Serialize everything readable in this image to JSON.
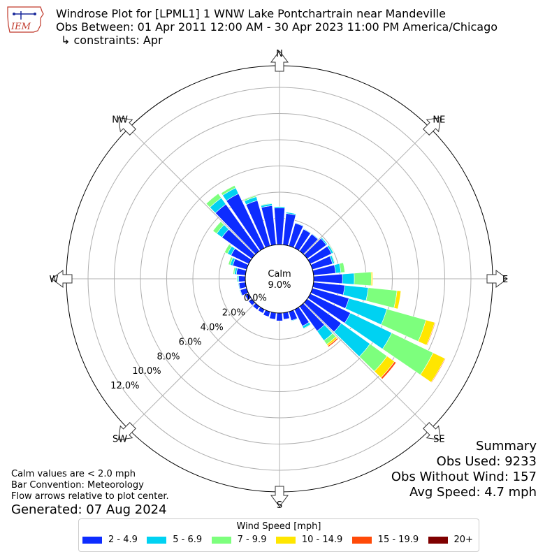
{
  "header": {
    "logo_text": "IEM",
    "title_line1": "Windrose Plot for [LPML1] 1 WNW Lake Pontchartrain near Mandeville",
    "title_line2": "Obs Between: 01 Apr 2011 12:00 AM - 30 Apr 2023 11:00 PM America/Chicago",
    "title_line3": "↳ constraints: Apr"
  },
  "calm": {
    "label": "Calm",
    "value": "9.0%"
  },
  "summary": {
    "title": "Summary",
    "obs_used": "Obs Used: 9233",
    "obs_without_wind": "Obs Without Wind: 157",
    "avg_speed": "Avg Speed: 4.7 mph"
  },
  "notes": {
    "line1": "Calm values are < 2.0 mph",
    "line2": "Bar Convention: Meteorology",
    "line3": "Flow arrows relative to plot center."
  },
  "generated": "Generated: 07 Aug 2024",
  "legend": {
    "title": "Wind Speed [mph]",
    "items": [
      {
        "label": "2 - 4.9",
        "color": "#0d2cff"
      },
      {
        "label": "5 - 6.9",
        "color": "#00d2f2"
      },
      {
        "label": "7 - 9.9",
        "color": "#7dff7d"
      },
      {
        "label": "10 - 14.9",
        "color": "#ffe600"
      },
      {
        "label": "15 - 19.9",
        "color": "#ff4a08"
      },
      {
        "label": "20+",
        "color": "#7f0000"
      }
    ]
  },
  "chart_data": {
    "type": "windrose",
    "units": "percent of observations",
    "compass": [
      "N",
      "NE",
      "E",
      "SE",
      "S",
      "SW",
      "W",
      "NW"
    ],
    "radial_ticks": [
      "0.0%",
      "2.0%",
      "4.0%",
      "6.0%",
      "8.0%",
      "10.0%",
      "12.0%"
    ],
    "calm_percent": 9.0,
    "speed_bins": [
      "2 - 4.9",
      "5 - 6.9",
      "7 - 9.9",
      "10 - 14.9",
      "15 - 19.9",
      "20+"
    ],
    "bin_colors": [
      "#0d2cff",
      "#00d2f2",
      "#7dff7d",
      "#ffe600",
      "#ff4a08",
      "#7f0000"
    ],
    "directions": [
      0,
      10,
      20,
      30,
      40,
      50,
      60,
      70,
      80,
      90,
      100,
      110,
      120,
      130,
      140,
      150,
      160,
      170,
      180,
      190,
      200,
      210,
      220,
      230,
      240,
      250,
      260,
      270,
      280,
      290,
      300,
      310,
      320,
      330,
      340,
      350
    ],
    "series": [
      {
        "name": "2 - 4.9",
        "values": [
          2.8,
          2.4,
          1.8,
          1.6,
          1.6,
          1.8,
          1.8,
          1.6,
          1.7,
          2.2,
          2.4,
          2.9,
          3.4,
          3.2,
          2.3,
          1.4,
          0.7,
          0.5,
          0.6,
          0.5,
          0.4,
          0.3,
          0.3,
          0.3,
          0.3,
          0.5,
          0.5,
          0.5,
          0.7,
          1.1,
          1.5,
          2.8,
          4.4,
          4.6,
          3.6,
          3.0
        ]
      },
      {
        "name": "5 - 6.9",
        "values": [
          0.1,
          0.1,
          0.05,
          0.05,
          0.05,
          0.1,
          0.15,
          0.15,
          0.4,
          0.9,
          1.8,
          3.0,
          3.5,
          2.7,
          0.9,
          0.2,
          0.05,
          0.0,
          0.0,
          0.0,
          0.0,
          0.0,
          0.0,
          0.0,
          0.0,
          0.05,
          0.05,
          0.1,
          0.15,
          0.2,
          0.3,
          0.5,
          0.6,
          0.5,
          0.3,
          0.15
        ]
      },
      {
        "name": "7 - 9.9",
        "values": [
          0.0,
          0.0,
          0.0,
          0.0,
          0.0,
          0.0,
          0.05,
          0.05,
          0.3,
          1.3,
          2.2,
          3.1,
          3.5,
          1.6,
          0.35,
          0.05,
          0.0,
          0.0,
          0.0,
          0.0,
          0.0,
          0.0,
          0.0,
          0.0,
          0.0,
          0.0,
          0.0,
          0.05,
          0.1,
          0.15,
          0.25,
          0.35,
          0.4,
          0.2,
          0.1,
          0.05
        ]
      },
      {
        "name": "10 - 14.9",
        "values": [
          0.0,
          0.0,
          0.0,
          0.0,
          0.0,
          0.0,
          0.0,
          0.0,
          0.0,
          0.1,
          0.3,
          0.7,
          1.0,
          0.7,
          0.15,
          0.0,
          0.0,
          0.0,
          0.0,
          0.0,
          0.0,
          0.0,
          0.0,
          0.0,
          0.0,
          0.0,
          0.0,
          0.0,
          0.0,
          0.0,
          0.0,
          0.0,
          0.0,
          0.0,
          0.0,
          0.0
        ]
      },
      {
        "name": "15 - 19.9",
        "values": [
          0.0,
          0.0,
          0.0,
          0.0,
          0.0,
          0.0,
          0.0,
          0.0,
          0.0,
          0.0,
          0.0,
          0.05,
          0.05,
          0.15,
          0.1,
          0.0,
          0.0,
          0.0,
          0.0,
          0.0,
          0.0,
          0.0,
          0.0,
          0.0,
          0.0,
          0.0,
          0.0,
          0.0,
          0.0,
          0.0,
          0.0,
          0.0,
          0.0,
          0.0,
          0.0,
          0.0
        ]
      },
      {
        "name": "20+",
        "values": [
          0.0,
          0.0,
          0.0,
          0.0,
          0.0,
          0.0,
          0.0,
          0.0,
          0.0,
          0.0,
          0.0,
          0.0,
          0.0,
          0.0,
          0.0,
          0.0,
          0.0,
          0.0,
          0.0,
          0.0,
          0.0,
          0.0,
          0.0,
          0.0,
          0.0,
          0.0,
          0.0,
          0.0,
          0.0,
          0.0,
          0.0,
          0.0,
          0.0,
          0.0,
          0.0,
          0.0
        ]
      }
    ]
  }
}
